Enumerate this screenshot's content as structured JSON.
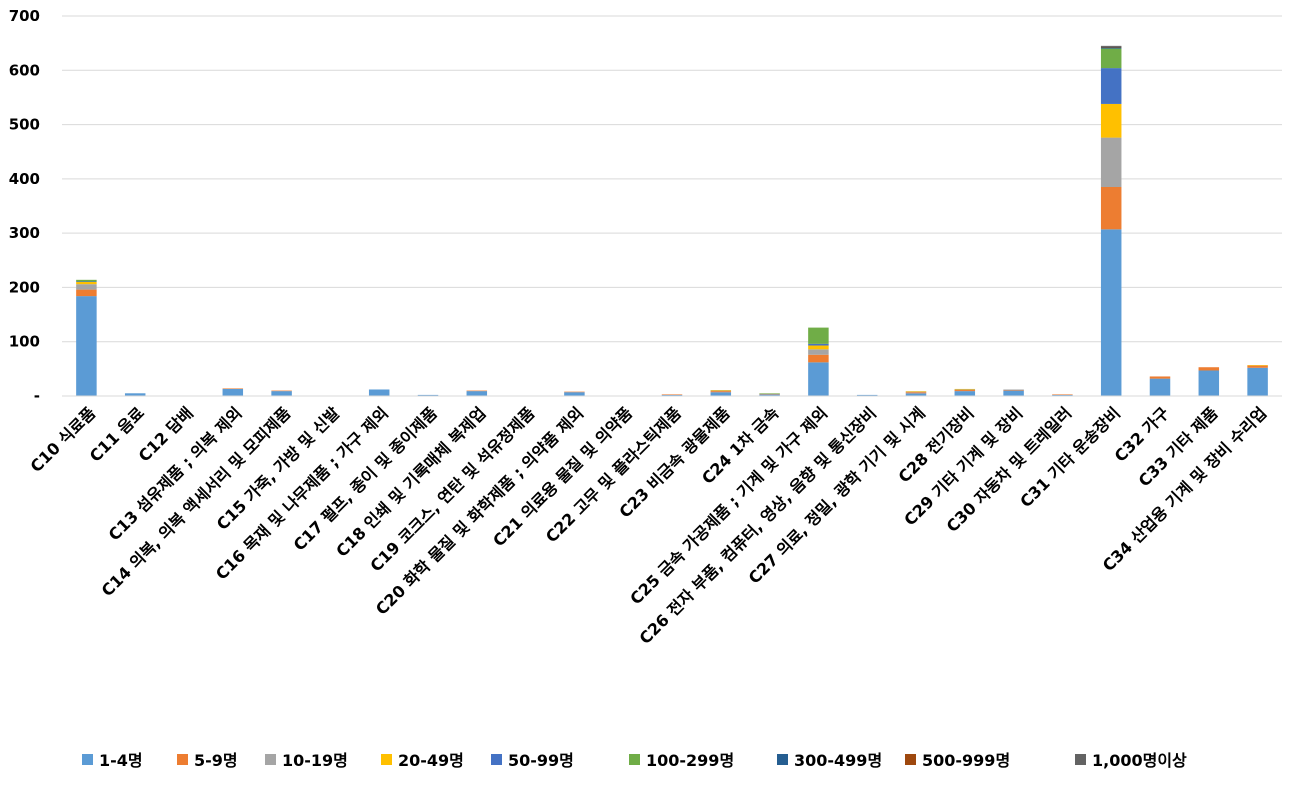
{
  "chart_data": {
    "type": "stacked-bar",
    "title": "",
    "xlabel": "",
    "ylabel": "",
    "ylim": [
      0,
      700
    ],
    "yticks": [
      0,
      100,
      200,
      300,
      400,
      500,
      600,
      700
    ],
    "ytick_labels": [
      "-",
      "100",
      "200",
      "300",
      "400",
      "500",
      "600",
      "700"
    ],
    "grid": true,
    "legend_position": "bottom",
    "categories": [
      "C10 식료품",
      "C11 음료",
      "C12 담배",
      "C13 섬유제품 ; 의복 제외",
      "C14 의복, 의복 액세서리 및 모피제품",
      "C15 가죽, 가방 및 신발",
      "C16 목재 및 나무제품 ; 가구 제외",
      "C17 펄프, 종이 및 종이제품",
      "C18 인쇄 및 기록매체 복제업",
      "C19 코크스, 연탄 및 석유정제품",
      "C20 화학 물질 및 화학제품 ; 의약품 제외",
      "C21 의료용 물질 및 의약품",
      "C22 고무 및 플라스틱제품",
      "C23 비금속 광물제품",
      "C24 1차 금속",
      "C25 금속 가공제품 ; 기계 및 가구 제외",
      "C26 전자 부품, 컴퓨터, 영상, 음향 및 통신장비",
      "C27 의료, 정밀, 광학 기기 및 시계",
      "C28 전기장비",
      "C29 기타 기계 및 장비",
      "C30 자동차 및 트레일러",
      "C31 기타 운송장비",
      "C32 가구",
      "C33 기타 제품",
      "C34 산업용 기계 및 장비 수리업"
    ],
    "series": [
      {
        "name": "1-4명",
        "color": "#5B9BD5",
        "values": [
          184,
          5,
          0,
          13,
          9,
          0,
          12,
          2,
          9,
          0,
          7,
          0,
          2,
          7,
          3,
          62,
          2,
          5,
          9,
          10,
          2,
          307,
          32,
          47,
          52
        ]
      },
      {
        "name": "5-9명",
        "color": "#ED7D31",
        "values": [
          12,
          0,
          0,
          1,
          1,
          0,
          0,
          0,
          1,
          0,
          1,
          0,
          1,
          2,
          1,
          14,
          0,
          2,
          2,
          1,
          1,
          78,
          4,
          6,
          4
        ]
      },
      {
        "name": "10-19명",
        "color": "#A5A5A5",
        "values": [
          10,
          0,
          0,
          0,
          0,
          0,
          0,
          0,
          0,
          0,
          0,
          0,
          0,
          1,
          0,
          10,
          0,
          1,
          1,
          1,
          0,
          91,
          0,
          0,
          0
        ]
      },
      {
        "name": "20-49명",
        "color": "#FFC000",
        "values": [
          4,
          0,
          0,
          0,
          0,
          0,
          0,
          0,
          0,
          0,
          0,
          0,
          0,
          1,
          0,
          7,
          0,
          1,
          1,
          0,
          0,
          62,
          0,
          0,
          1
        ]
      },
      {
        "name": "50-99명",
        "color": "#4472C4",
        "values": [
          1,
          0,
          0,
          0,
          0,
          0,
          0,
          0,
          0,
          0,
          0,
          0,
          0,
          0,
          0,
          3,
          0,
          0,
          0,
          0,
          0,
          66,
          0,
          0,
          0
        ]
      },
      {
        "name": "100-299명",
        "color": "#70AD47",
        "values": [
          3,
          0,
          0,
          0,
          0,
          0,
          0,
          0,
          0,
          0,
          0,
          0,
          0,
          0,
          1,
          30,
          0,
          0,
          0,
          0,
          0,
          36,
          0,
          0,
          0
        ]
      },
      {
        "name": "300-499명",
        "color": "#255E91",
        "values": [
          0,
          0,
          0,
          0,
          0,
          0,
          0,
          0,
          0,
          0,
          0,
          0,
          0,
          0,
          0,
          0,
          0,
          0,
          0,
          0,
          0,
          2,
          0,
          0,
          0
        ]
      },
      {
        "name": "500-999명",
        "color": "#9E480E",
        "values": [
          0,
          0,
          0,
          0,
          0,
          0,
          0,
          0,
          0,
          0,
          0,
          0,
          0,
          0,
          0,
          0,
          0,
          0,
          0,
          0,
          0,
          1,
          0,
          0,
          0
        ]
      },
      {
        "name": "1,000명이상",
        "color": "#636363",
        "values": [
          0,
          0,
          0,
          0,
          0,
          0,
          0,
          0,
          0,
          0,
          0,
          0,
          0,
          0,
          0,
          0,
          0,
          0,
          0,
          0,
          0,
          2,
          0,
          0,
          0
        ]
      }
    ]
  }
}
